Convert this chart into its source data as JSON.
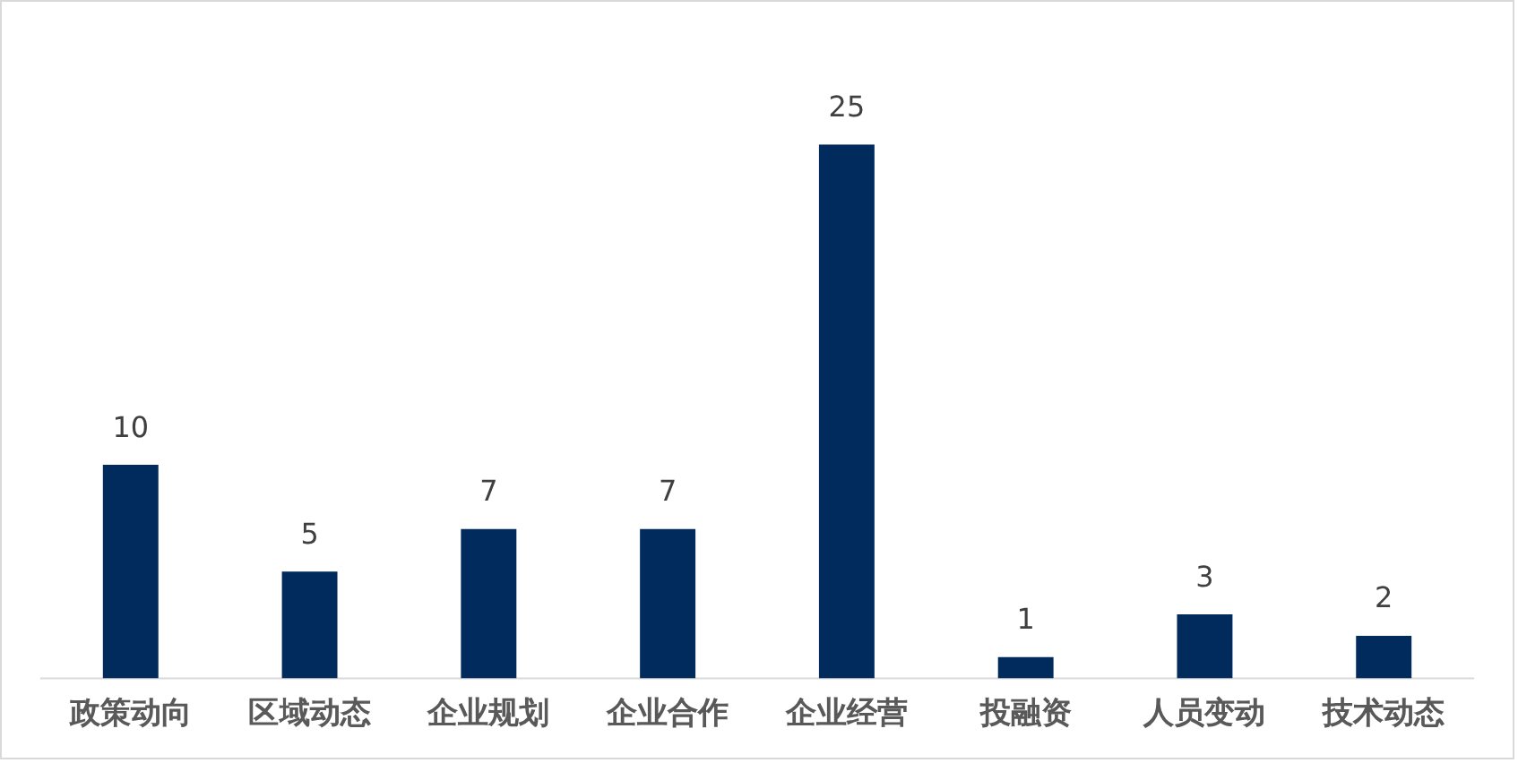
{
  "chart_data": {
    "type": "bar",
    "categories": [
      "政策动向",
      "区域动态",
      "企业规划",
      "企业合作",
      "企业经营",
      "投融资",
      "人员变动",
      "技术动态"
    ],
    "values": [
      10,
      5,
      7,
      7,
      25,
      1,
      3,
      2
    ],
    "color": "#002b5c",
    "data_labels": true,
    "grid": false,
    "legend": false
  }
}
